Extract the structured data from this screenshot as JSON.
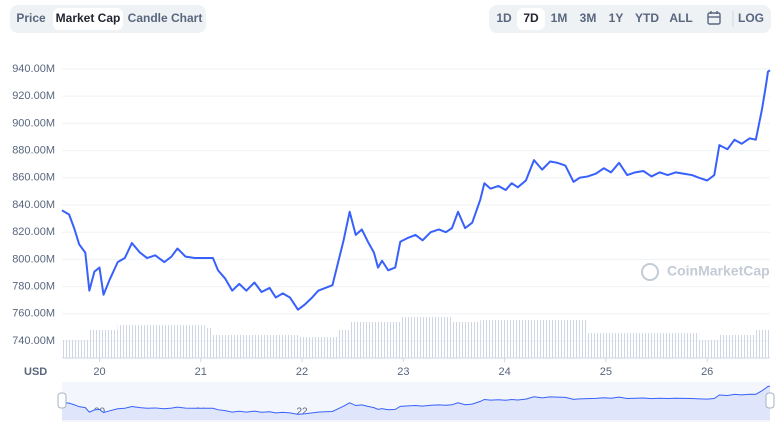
{
  "tabs": [
    "Price",
    "Market Cap",
    "Candle Chart"
  ],
  "active_tab": 1,
  "ranges": [
    "1D",
    "7D",
    "1M",
    "3M",
    "1Y",
    "YTD",
    "ALL"
  ],
  "active_range": 1,
  "log_button": "LOG",
  "chart_data": {
    "type": "line",
    "currency": "USD",
    "watermark": "CoinMarketCap",
    "color": "#3861fb",
    "grid": true,
    "x": [
      19.63,
      19.7,
      19.75,
      19.8,
      19.86,
      19.9,
      19.95,
      20.0,
      20.04,
      20.1,
      20.18,
      20.25,
      20.32,
      20.4,
      20.47,
      20.55,
      20.64,
      20.71,
      20.77,
      20.85,
      20.94,
      21.04,
      21.12,
      21.17,
      21.24,
      21.31,
      21.38,
      21.45,
      21.53,
      21.6,
      21.68,
      21.74,
      21.81,
      21.88,
      21.96,
      22.03,
      22.1,
      22.16,
      22.23,
      22.3,
      22.35,
      22.41,
      22.47,
      22.53,
      22.59,
      22.65,
      22.71,
      22.75,
      22.79,
      22.85,
      22.92,
      22.97,
      23.05,
      23.12,
      23.19,
      23.27,
      23.35,
      23.42,
      23.48,
      23.54,
      23.61,
      23.68,
      23.76,
      23.8,
      23.86,
      23.94,
      24.01,
      24.07,
      24.13,
      24.21,
      24.29,
      24.37,
      24.45,
      24.52,
      24.6,
      24.68,
      24.74,
      24.82,
      24.9,
      24.98,
      25.05,
      25.13,
      25.21,
      25.29,
      25.37,
      25.45,
      25.53,
      25.61,
      25.69,
      25.77,
      25.85,
      25.92,
      26.0,
      26.07,
      26.12,
      26.2,
      26.27,
      26.34,
      26.42,
      26.48,
      26.54,
      26.58,
      26.6,
      26.62
    ],
    "values": [
      836,
      833,
      823,
      811,
      805,
      777,
      791,
      794,
      774,
      785,
      798,
      801,
      812,
      805,
      801,
      803,
      798,
      802,
      808,
      802,
      801,
      801,
      801,
      792,
      786,
      777,
      782,
      777,
      783,
      776,
      779,
      772,
      775,
      772,
      763,
      767,
      772,
      777,
      779,
      781,
      796,
      814,
      835,
      818,
      822,
      813,
      805,
      794,
      799,
      792,
      794,
      813,
      816,
      818,
      814,
      820,
      822,
      820,
      823,
      835,
      823,
      827,
      844,
      856,
      852,
      854,
      851,
      856,
      853,
      858,
      873,
      866,
      872,
      871,
      869,
      857,
      860,
      861,
      863,
      867,
      864,
      871,
      862,
      864,
      865,
      861,
      864,
      862,
      864,
      863,
      862,
      860,
      858,
      862,
      884,
      881,
      888,
      885,
      889,
      888,
      910,
      928,
      938,
      939
    ],
    "volume": {
      "x": [
        19.63,
        19.9,
        20.18,
        21.04,
        21.12,
        21.96,
        22.35,
        22.47,
        22.97,
        23.35,
        23.48,
        23.76,
        24.74,
        24.82,
        25.92,
        26.12,
        26.48,
        26.62
      ],
      "values": [
        18,
        28,
        33,
        30,
        23,
        21,
        28,
        36,
        41,
        41,
        36,
        38,
        38,
        25,
        18,
        23,
        28,
        40
      ]
    },
    "xlim": [
      19.63,
      26.62
    ],
    "xticks": [
      20,
      21,
      22,
      23,
      24,
      25,
      26
    ],
    "ylim": [
      727.5,
      946.6
    ],
    "yticks": [
      {
        "value": 740,
        "label": "740.00M"
      },
      {
        "value": 760,
        "label": "760.00M"
      },
      {
        "value": 780,
        "label": "780.00M"
      },
      {
        "value": 800,
        "label": "800.00M"
      },
      {
        "value": 820,
        "label": "820.00M"
      },
      {
        "value": 840,
        "label": "840.00M"
      },
      {
        "value": 860,
        "label": "860.00M"
      },
      {
        "value": 880,
        "label": "880.00M"
      },
      {
        "value": 900,
        "label": "900.00M"
      },
      {
        "value": 920,
        "label": "920.00M"
      },
      {
        "value": 940,
        "label": "940.00M"
      }
    ]
  }
}
